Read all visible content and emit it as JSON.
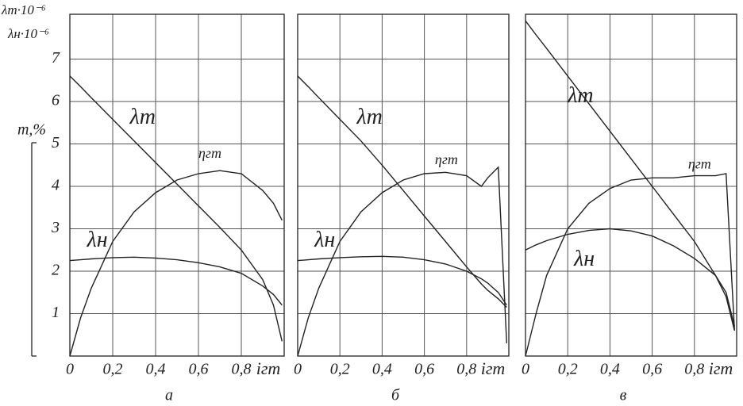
{
  "chart_data": [
    {
      "type": "line",
      "panel_label": "а",
      "xlabel": "iгт",
      "ylabel": [
        "λт·10⁻⁶",
        "λн·10⁻⁶"
      ],
      "ylabel2": "m,%",
      "x": [
        0,
        0.05,
        0.1,
        0.2,
        0.3,
        0.4,
        0.5,
        0.6,
        0.7,
        0.8,
        0.9,
        0.95,
        0.99
      ],
      "series": [
        {
          "name": "λт",
          "color": "#222222",
          "values": [
            6.6,
            6.35,
            6.09,
            5.58,
            5.07,
            4.56,
            4.05,
            3.54,
            3.03,
            2.5,
            1.8,
            1.2,
            0.35
          ]
        },
        {
          "name": "ηгт",
          "color": "#222222",
          "values": [
            0,
            0.9,
            1.6,
            2.7,
            3.4,
            3.85,
            4.15,
            4.3,
            4.37,
            4.3,
            3.9,
            3.6,
            3.2
          ]
        },
        {
          "name": "λн",
          "color": "#222222",
          "values": [
            2.25,
            2.27,
            2.29,
            2.32,
            2.33,
            2.31,
            2.27,
            2.2,
            2.1,
            1.95,
            1.65,
            1.45,
            1.2
          ]
        }
      ],
      "xlim": [
        0,
        1
      ],
      "ylim": [
        0,
        8
      ],
      "xticks": [
        {
          "value": 0,
          "label": "0"
        },
        {
          "value": 0.2,
          "label": "0,2"
        },
        {
          "value": 0.4,
          "label": "0,4"
        },
        {
          "value": 0.6,
          "label": "0,6"
        },
        {
          "value": 0.8,
          "label": "0,8"
        }
      ],
      "yticks": [
        1,
        2,
        3,
        4,
        5,
        6,
        7
      ],
      "grid": true
    },
    {
      "type": "line",
      "panel_label": "б",
      "xlabel": "iгт",
      "x": [
        0,
        0.05,
        0.1,
        0.2,
        0.3,
        0.4,
        0.5,
        0.6,
        0.7,
        0.8,
        0.87,
        0.9,
        0.95,
        0.99
      ],
      "series": [
        {
          "name": "λт",
          "color": "#222222",
          "values": [
            6.6,
            6.35,
            6.09,
            5.58,
            5.07,
            4.5,
            3.9,
            3.3,
            2.7,
            2.1,
            1.7,
            1.55,
            1.35,
            1.15
          ]
        },
        {
          "name": "ηгт",
          "color": "#222222",
          "values": [
            0,
            0.9,
            1.6,
            2.7,
            3.4,
            3.85,
            4.15,
            4.3,
            4.33,
            4.25,
            4.0,
            4.2,
            4.45,
            0.3
          ]
        },
        {
          "name": "λн",
          "color": "#222222",
          "values": [
            2.25,
            2.27,
            2.29,
            2.32,
            2.34,
            2.35,
            2.33,
            2.27,
            2.17,
            2.0,
            1.82,
            1.72,
            1.5,
            1.2
          ]
        }
      ],
      "xlim": [
        0,
        1
      ],
      "ylim": [
        0,
        8
      ],
      "xticks": [
        {
          "value": 0,
          "label": "0"
        },
        {
          "value": 0.2,
          "label": "0,2"
        },
        {
          "value": 0.4,
          "label": "0,4"
        },
        {
          "value": 0.6,
          "label": "0,6"
        },
        {
          "value": 0.8,
          "label": "0,8"
        }
      ],
      "yticks": [
        1,
        2,
        3,
        4,
        5,
        6,
        7
      ],
      "grid": true
    },
    {
      "type": "line",
      "panel_label": "в",
      "xlabel": "iгт",
      "x": [
        0,
        0.05,
        0.1,
        0.2,
        0.3,
        0.4,
        0.5,
        0.6,
        0.7,
        0.8,
        0.9,
        0.95,
        0.99
      ],
      "series": [
        {
          "name": "λт",
          "color": "#222222",
          "values": [
            7.9,
            7.57,
            7.25,
            6.6,
            5.95,
            5.3,
            4.65,
            4.0,
            3.35,
            2.7,
            1.9,
            1.4,
            0.6
          ]
        },
        {
          "name": "ηгт",
          "color": "#222222",
          "values": [
            0,
            1.0,
            1.9,
            3.0,
            3.6,
            3.95,
            4.15,
            4.2,
            4.2,
            4.25,
            4.25,
            4.3,
            0.6
          ]
        },
        {
          "name": "λн",
          "color": "#222222",
          "values": [
            2.5,
            2.62,
            2.72,
            2.87,
            2.96,
            3.0,
            2.95,
            2.83,
            2.6,
            2.3,
            1.9,
            1.5,
            0.7
          ]
        }
      ],
      "xlim": [
        0,
        1
      ],
      "ylim": [
        0,
        8
      ],
      "xticks": [
        {
          "value": 0,
          "label": "0"
        },
        {
          "value": 0.2,
          "label": "0,2"
        },
        {
          "value": 0.4,
          "label": "0,4"
        },
        {
          "value": 0.6,
          "label": "0,6"
        },
        {
          "value": 0.8,
          "label": "0,8"
        }
      ],
      "yticks": [
        1,
        2,
        3,
        4,
        5,
        6,
        7
      ],
      "grid": true
    }
  ]
}
